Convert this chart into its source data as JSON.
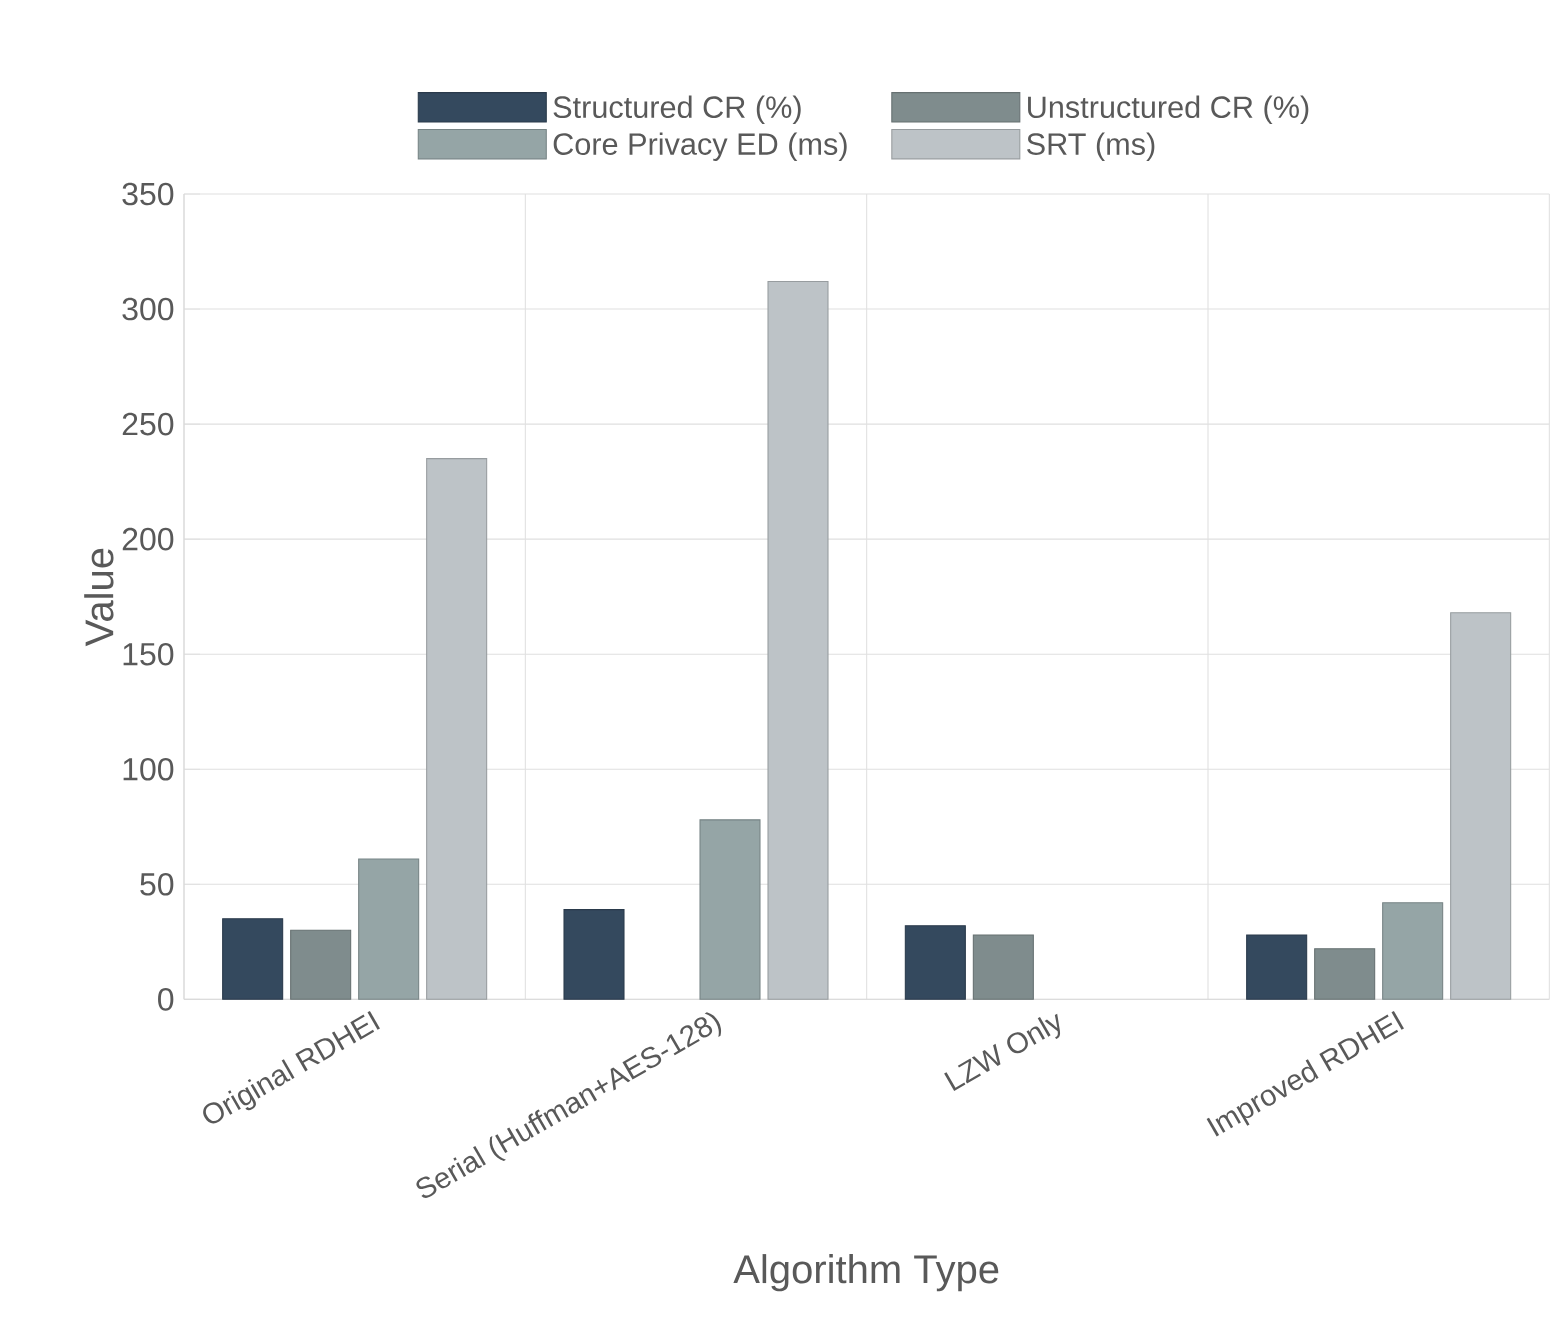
{
  "chart_data": {
    "type": "bar",
    "xlabel": "Algorithm Type",
    "ylabel": "Value",
    "categories": [
      "Original RDHEI",
      "Serial (Huffman+AES-128)",
      "LZW Only",
      "Improved RDHEI"
    ],
    "series": [
      {
        "name": "Structured CR (%)",
        "color": "#34495e",
        "values": [
          35,
          39,
          32,
          28
        ]
      },
      {
        "name": "Unstructured CR (%)",
        "color": "#7f8c8d",
        "values": [
          30,
          null,
          28,
          22
        ]
      },
      {
        "name": "Core Privacy ED (ms)",
        "color": "#95a5a6",
        "values": [
          61,
          78,
          null,
          42
        ]
      },
      {
        "name": "SRT (ms)",
        "color": "#bdc3c7",
        "values": [
          235,
          312,
          null,
          168
        ]
      }
    ],
    "ylim": [
      0,
      350
    ],
    "yticks": [
      0,
      50,
      100,
      150,
      200,
      250,
      300,
      350
    ],
    "grid": true,
    "legend": "top"
  }
}
